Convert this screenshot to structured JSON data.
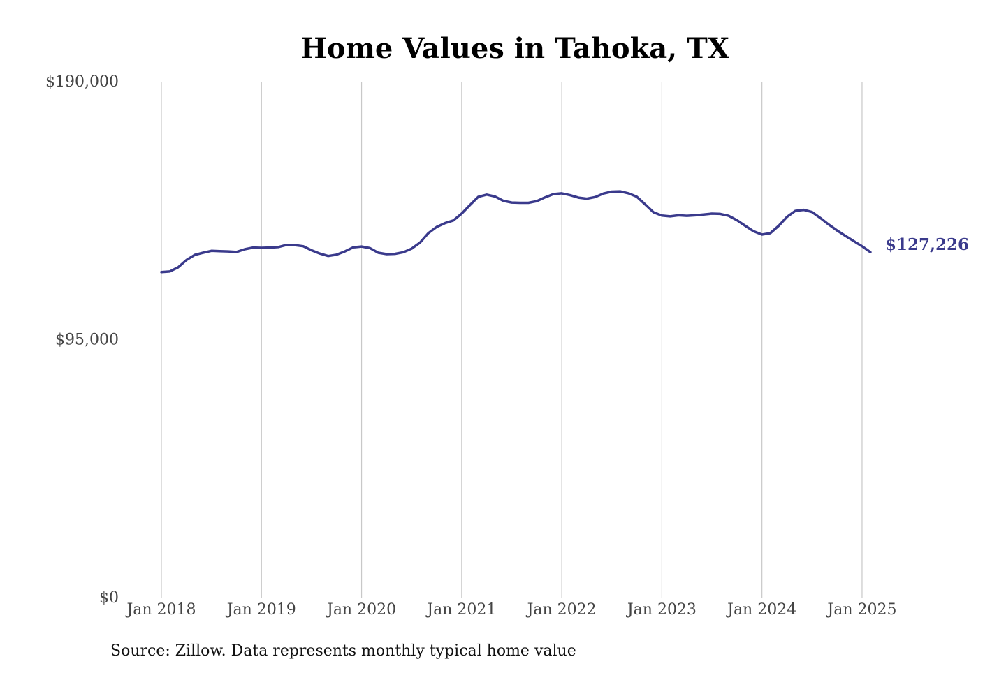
{
  "chart_data": {
    "type": "line",
    "title": "Home Values in Tahoka, TX",
    "xlabel": "",
    "ylabel": "",
    "ylim": [
      0,
      190000
    ],
    "y_ticks": [
      {
        "value": 0,
        "label": "$0"
      },
      {
        "value": 95000,
        "label": "$95,000"
      },
      {
        "value": 190000,
        "label": "$190,000"
      }
    ],
    "x_ticks": [
      {
        "value": "2018-01",
        "label": "Jan 2018"
      },
      {
        "value": "2019-01",
        "label": "Jan 2019"
      },
      {
        "value": "2020-01",
        "label": "Jan 2020"
      },
      {
        "value": "2021-01",
        "label": "Jan 2021"
      },
      {
        "value": "2022-01",
        "label": "Jan 2022"
      },
      {
        "value": "2023-01",
        "label": "Jan 2023"
      },
      {
        "value": "2024-01",
        "label": "Jan 2024"
      },
      {
        "value": "2025-01",
        "label": "Jan 2025"
      }
    ],
    "grid": {
      "vertical": true,
      "horizontal": false
    },
    "line_color": "#3a3a8c",
    "grid_color": "#c8c8c8",
    "end_label": "$127,226",
    "series": [
      {
        "x": [
          "2018-01",
          "2018-02",
          "2018-03",
          "2018-04",
          "2018-05",
          "2018-06",
          "2018-07",
          "2018-08",
          "2018-09",
          "2018-10",
          "2018-11",
          "2018-12",
          "2019-01",
          "2019-02",
          "2019-03",
          "2019-04",
          "2019-05",
          "2019-06",
          "2019-07",
          "2019-08",
          "2019-09",
          "2019-10",
          "2019-11",
          "2019-12",
          "2020-01",
          "2020-02",
          "2020-03",
          "2020-04",
          "2020-05",
          "2020-06",
          "2020-07",
          "2020-08",
          "2020-09",
          "2020-10",
          "2020-11",
          "2020-12",
          "2021-01",
          "2021-02",
          "2021-03",
          "2021-04",
          "2021-05",
          "2021-06",
          "2021-07",
          "2021-08",
          "2021-09",
          "2021-10",
          "2021-11",
          "2021-12",
          "2022-01",
          "2022-02",
          "2022-03",
          "2022-04",
          "2022-05",
          "2022-06",
          "2022-07",
          "2022-08",
          "2022-09",
          "2022-10",
          "2022-11",
          "2022-12",
          "2023-01",
          "2023-02",
          "2023-03",
          "2023-04",
          "2023-05",
          "2023-06",
          "2023-07",
          "2023-08",
          "2023-09",
          "2023-10",
          "2023-11",
          "2023-12",
          "2024-01",
          "2024-02",
          "2024-03",
          "2024-04",
          "2024-05",
          "2024-06",
          "2024-07",
          "2024-08",
          "2024-09",
          "2024-10",
          "2024-11",
          "2024-12",
          "2025-01",
          "2025-02"
        ],
        "values": [
          119900,
          120100,
          121600,
          124300,
          126200,
          127000,
          127700,
          127600,
          127500,
          127300,
          128300,
          128900,
          128800,
          128900,
          129100,
          129900,
          129800,
          129400,
          127900,
          126700,
          125800,
          126300,
          127500,
          129000,
          129300,
          128700,
          127000,
          126500,
          126600,
          127200,
          128500,
          130700,
          134200,
          136500,
          137900,
          138900,
          141400,
          144600,
          147600,
          148400,
          147700,
          146100,
          145500,
          145400,
          145400,
          146000,
          147400,
          148600,
          148900,
          148200,
          147300,
          146900,
          147500,
          148800,
          149500,
          149600,
          148900,
          147600,
          144800,
          141900,
          140700,
          140400,
          140800,
          140600,
          140800,
          141100,
          141400,
          141300,
          140600,
          139000,
          136900,
          134900,
          133700,
          134200,
          136900,
          140200,
          142400,
          142800,
          142000,
          139800,
          137400,
          135200,
          133200,
          131300,
          129400,
          127226
        ]
      }
    ]
  },
  "source": "Source: Zillow. Data represents monthly typical home value"
}
